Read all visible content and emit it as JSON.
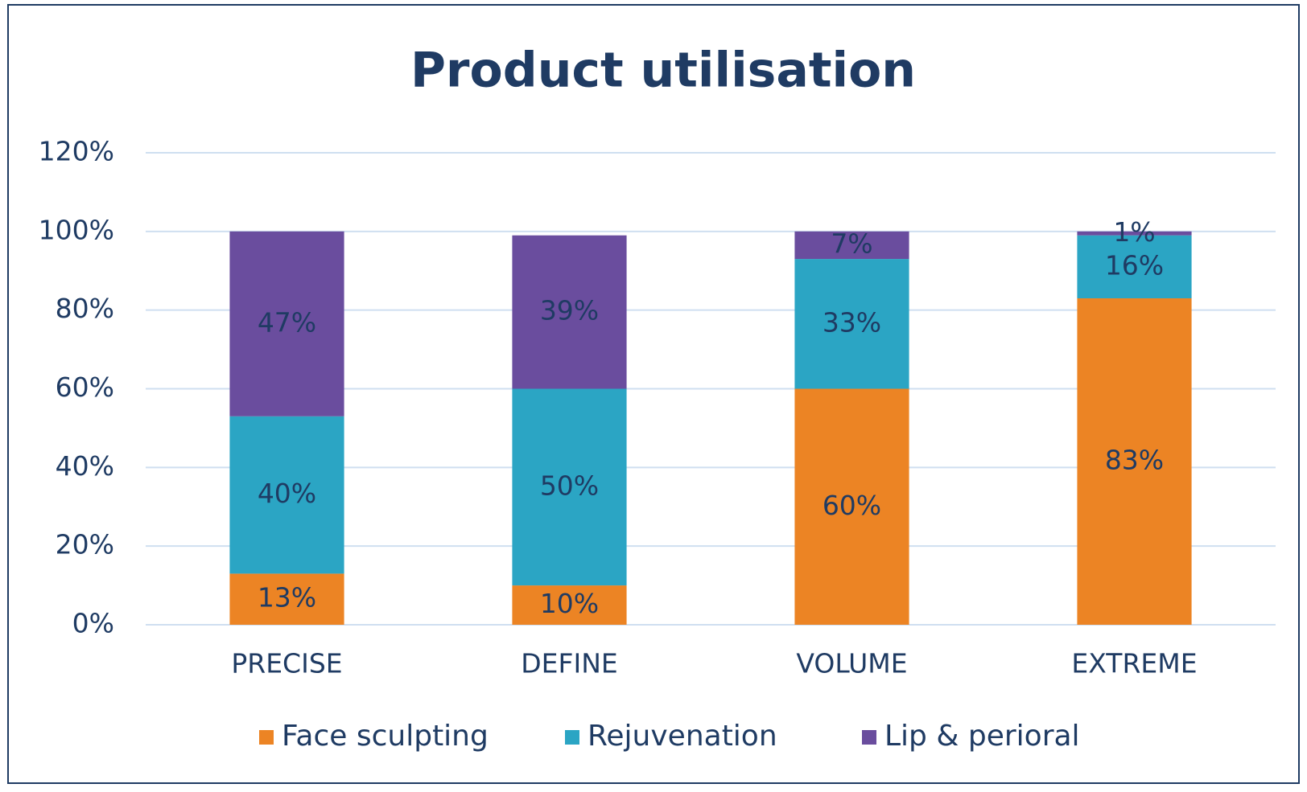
{
  "chart_data": {
    "type": "stacked_bar",
    "title": "Product utilisation",
    "categories": [
      "PRECISE",
      "DEFINE",
      "VOLUME",
      "EXTREME"
    ],
    "series": [
      {
        "name": "Face sculpting",
        "color": "#ec8424",
        "values": [
          13,
          10,
          60,
          83
        ],
        "value_labels": [
          "13%",
          "10%",
          "60%",
          "83%"
        ]
      },
      {
        "name": "Rejuvenation",
        "color": "#2ba5c4",
        "values": [
          40,
          50,
          33,
          16
        ],
        "value_labels": [
          "40%",
          "50%",
          "33%",
          "16%"
        ]
      },
      {
        "name": "Lip & perioral",
        "color": "#6a4d9e",
        "values": [
          47,
          39,
          7,
          1
        ],
        "value_labels": [
          "47%",
          "39%",
          "7%",
          "1%"
        ]
      }
    ],
    "ylim": [
      0,
      120
    ],
    "yticks": [
      {
        "value": 0,
        "label": "0%"
      },
      {
        "value": 20,
        "label": "20%"
      },
      {
        "value": 40,
        "label": "40%"
      },
      {
        "value": 60,
        "label": "60%"
      },
      {
        "value": 80,
        "label": "80%"
      },
      {
        "value": 100,
        "label": "100%"
      },
      {
        "value": 120,
        "label": "120%"
      }
    ],
    "grid": true,
    "legend": "bottom"
  }
}
